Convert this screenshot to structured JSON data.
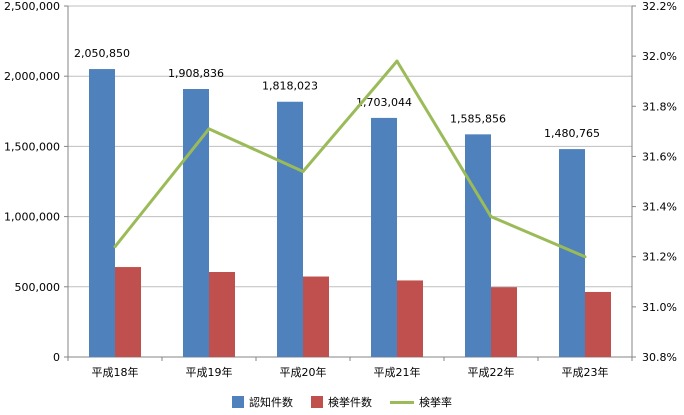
{
  "chart_data": {
    "type": "bar",
    "title": "",
    "xlabel": "",
    "ylabel": "",
    "categories": [
      "平成18年",
      "平成19年",
      "平成20年",
      "平成21年",
      "平成22年",
      "平成23年"
    ],
    "series": [
      {
        "name": "認知件数",
        "type": "bar",
        "axis": "left",
        "color": "#4F81BD",
        "values": [
          2050850,
          1908836,
          1818023,
          1703044,
          1585856,
          1480765
        ],
        "data_labels": [
          "2,050,850",
          "1,908,836",
          "1,818,023",
          "1,703,044",
          "1,585,856",
          "1,480,765"
        ]
      },
      {
        "name": "検挙件数",
        "type": "bar",
        "axis": "left",
        "color": "#C0504D",
        "values": [
          640700,
          605400,
          573200,
          545300,
          497400,
          463300
        ]
      },
      {
        "name": "検挙率",
        "type": "line",
        "axis": "right",
        "color": "#9BBB59",
        "values": [
          31.24,
          31.71,
          31.54,
          31.98,
          31.36,
          31.2
        ]
      }
    ],
    "y_left": {
      "min": 0,
      "max": 2500000,
      "ticks": [
        0,
        500000,
        1000000,
        1500000,
        2000000,
        2500000
      ],
      "tick_labels": [
        "0",
        "500,000",
        "1,000,000",
        "1,500,000",
        "2,000,000",
        "2,500,000"
      ]
    },
    "y_right": {
      "min": 30.8,
      "max": 32.2,
      "ticks": [
        30.8,
        31.0,
        31.2,
        31.4,
        31.6,
        31.8,
        32.0,
        32.2
      ],
      "tick_labels": [
        "30.8%",
        "31.0%",
        "31.2%",
        "31.4%",
        "31.6%",
        "31.8%",
        "32.0%",
        "32.2%"
      ]
    },
    "grid": true,
    "legend_position": "bottom"
  }
}
